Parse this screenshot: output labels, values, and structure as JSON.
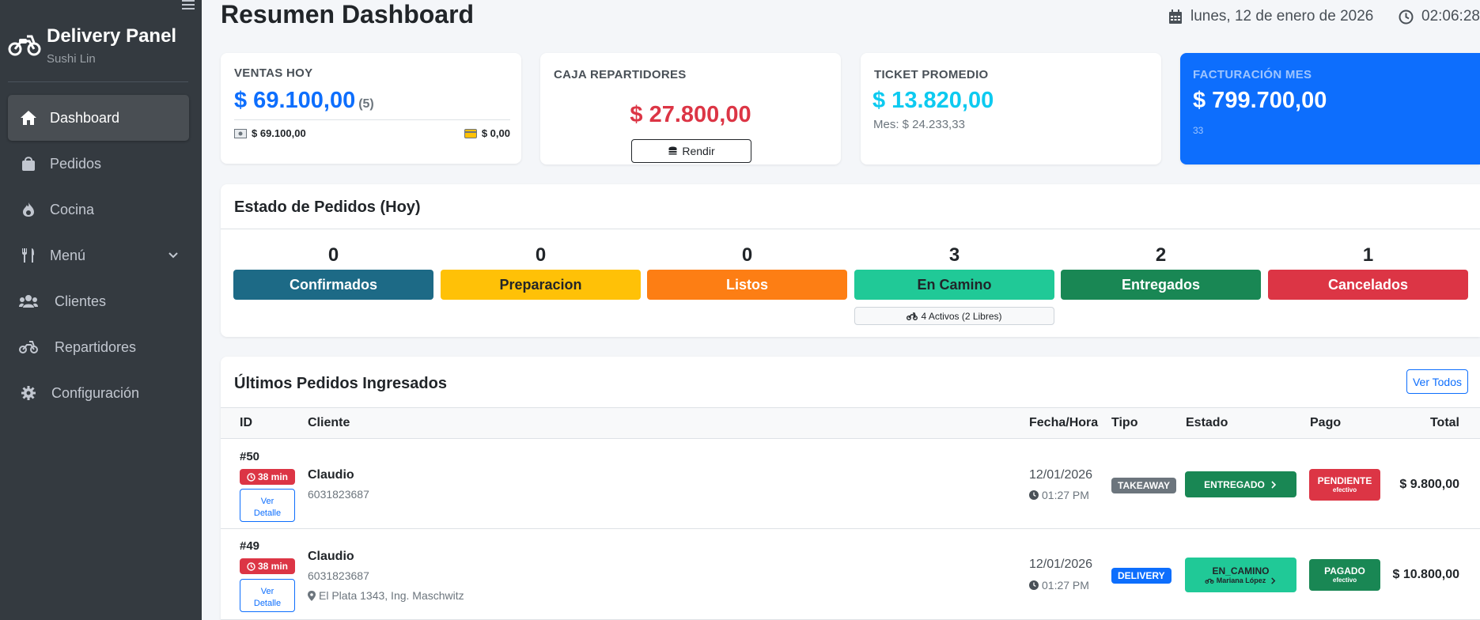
{
  "sidebar": {
    "brand_title": "Delivery Panel",
    "brand_sub": "Sushi Lin",
    "items": [
      {
        "label": "Dashboard",
        "icon": "home-icon"
      },
      {
        "label": "Pedidos",
        "icon": "bag-icon"
      },
      {
        "label": "Cocina",
        "icon": "fire-icon"
      },
      {
        "label": "Menú",
        "icon": "utensils-icon"
      },
      {
        "label": "Clientes",
        "icon": "users-icon"
      },
      {
        "label": "Repartidores",
        "icon": "motorcycle-icon"
      },
      {
        "label": "Configuración",
        "icon": "gear-icon"
      }
    ]
  },
  "header": {
    "title": "Resumen Dashboard",
    "date": "lunes, 12 de enero de 2026",
    "time": "02:06:28"
  },
  "cards": {
    "ventas": {
      "label": "VENTAS HOY",
      "value": "$ 69.100,00",
      "count": "(5)",
      "cash": "$ 69.100,00",
      "card": "$ 0,00"
    },
    "caja": {
      "label": "CAJA REPARTIDORES",
      "value": "$ 27.800,00",
      "button": "Rendir"
    },
    "ticket": {
      "label": "TICKET PROMEDIO",
      "value": "$ 13.820,00",
      "sub": "Mes: $ 24.233,33"
    },
    "facturacion": {
      "label": "FACTURACIÓN MES",
      "value": "$ 799.700,00",
      "sub": "33"
    }
  },
  "estado": {
    "title": "Estado de Pedidos (Hoy)",
    "items": [
      {
        "count": "0",
        "label": "Confirmados",
        "color": "#1d6a86"
      },
      {
        "count": "0",
        "label": "Preparacion",
        "color": "#ffc107"
      },
      {
        "count": "0",
        "label": "Listos",
        "color": "#fd7e14"
      },
      {
        "count": "3",
        "label": "En Camino",
        "color": "#20c997"
      },
      {
        "count": "2",
        "label": "Entregados",
        "color": "#198754"
      },
      {
        "count": "1",
        "label": "Cancelados",
        "color": "#dc3545"
      }
    ],
    "activos": "4 Activos (2 Libres)"
  },
  "pedidos": {
    "title": "Últimos Pedidos Ingresados",
    "ver_todos": "Ver Todos",
    "columns": {
      "id": "ID",
      "cliente": "Cliente",
      "fecha": "Fecha/Hora",
      "tipo": "Tipo",
      "estado": "Estado",
      "pago": "Pago",
      "total": "Total"
    },
    "detail_line1": "Ver",
    "detail_line2": "Detalle",
    "rows": [
      {
        "id": "#50",
        "elapsed": "38 min",
        "client": "Claudio",
        "phone": "6031823687",
        "address": "",
        "date": "12/01/2026",
        "time": "01:27 PM",
        "type": "TAKEAWAY",
        "status": "ENTREGADO",
        "driver": "",
        "pay": "PENDIENTE",
        "pay_method": "efectivo",
        "total": "$ 9.800,00"
      },
      {
        "id": "#49",
        "elapsed": "38 min",
        "client": "Claudio",
        "phone": "6031823687",
        "address": "El Plata 1343, Ing. Maschwitz",
        "date": "12/01/2026",
        "time": "01:27 PM",
        "type": "DELIVERY",
        "status": "EN_CAMINO",
        "driver": "Mariana López",
        "pay": "PAGADO",
        "pay_method": "efectivo",
        "total": "$ 10.800,00"
      }
    ]
  }
}
